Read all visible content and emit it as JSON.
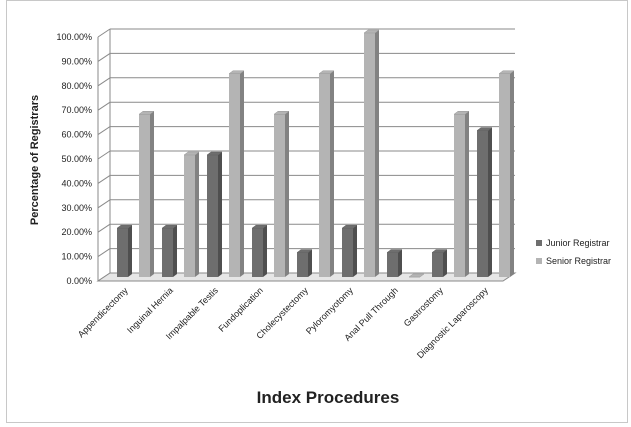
{
  "chart_data": {
    "type": "bar",
    "xlabel": "Index Procedures",
    "ylabel": "Percentage of Registrars",
    "categories": [
      "Appendicectomy",
      "Inguinal Hernia",
      "Impalpable Testis",
      "Fundoplication",
      "Cholecystectomy",
      "Pyloromyotomy",
      "Anal Pull Through",
      "Gastrostomy",
      "Diagnostic Laparoscopy"
    ],
    "series": [
      {
        "name": "Junior Registrar",
        "values": [
          20,
          20,
          50,
          20,
          10,
          20,
          10,
          10,
          60
        ],
        "color": "#6e6e6e"
      },
      {
        "name": "Senior Registrar",
        "values": [
          66.7,
          50,
          83.3,
          66.7,
          83.3,
          100,
          0,
          66.7,
          83.3
        ],
        "color": "#b4b4b4"
      }
    ],
    "ylim": [
      0,
      100
    ],
    "yticks": [
      "0.00%",
      "10.00%",
      "20.00%",
      "30.00%",
      "40.00%",
      "50.00%",
      "60.00%",
      "70.00%",
      "80.00%",
      "90.00%",
      "100.00%"
    ],
    "grid": true,
    "legend_position": "right"
  }
}
